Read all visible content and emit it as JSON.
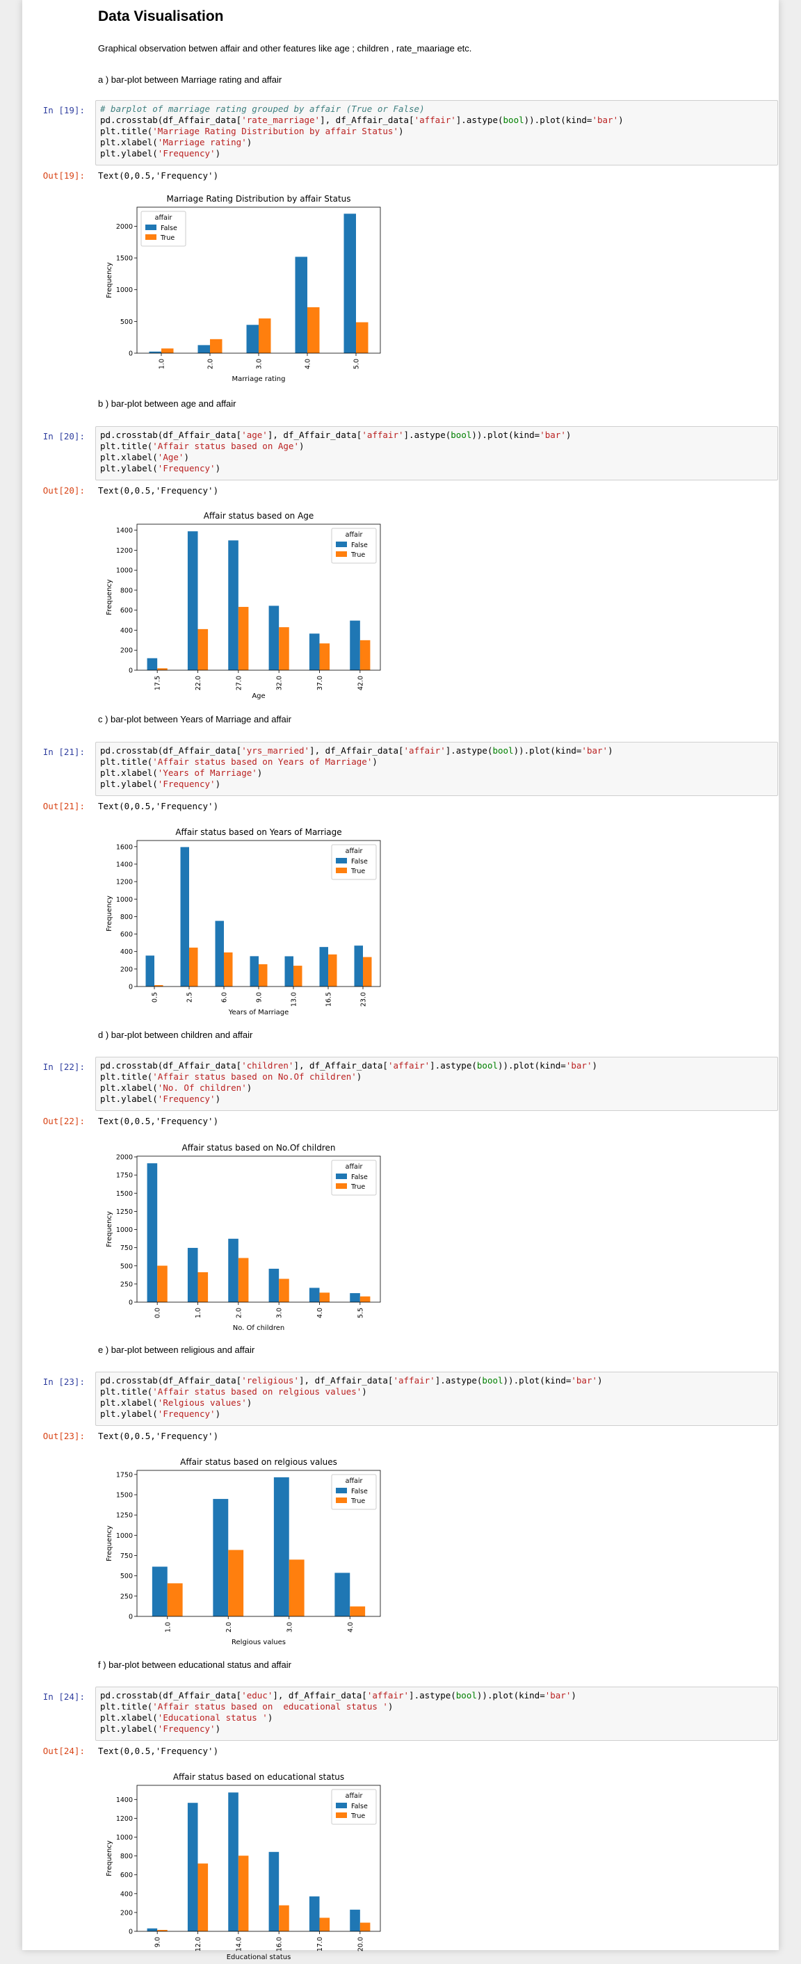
{
  "notebook": {
    "heading": "Data Visualisation",
    "intro": "Graphical observation betwen affair and other features like age ; children , rate_maariage etc."
  },
  "cells": [
    {
      "section": "a ) bar-plot between Marriage rating and affair",
      "in_prompt": "In [19]:",
      "out_prompt": "Out[19]:",
      "output_text": "Text(0,0.5,'Frequency')",
      "code_lines": [
        [
          {
            "t": "# barplot of marriage rating grouped by affair (True or False)",
            "c": "cm"
          }
        ],
        [
          {
            "t": "pd.crosstab(df_Affair_data["
          },
          {
            "t": "'rate_marriage'",
            "c": "st"
          },
          {
            "t": "], df_Affair_data["
          },
          {
            "t": "'affair'",
            "c": "st"
          },
          {
            "t": "].astype("
          },
          {
            "t": "bool",
            "c": "kw"
          },
          {
            "t": ")).plot(kind="
          },
          {
            "t": "'bar'",
            "c": "st"
          },
          {
            "t": ")"
          }
        ],
        [
          {
            "t": "plt.title("
          },
          {
            "t": "'Marriage Rating Distribution by affair Status'",
            "c": "st"
          },
          {
            "t": ")"
          }
        ],
        [
          {
            "t": "plt.xlabel("
          },
          {
            "t": "'Marriage rating'",
            "c": "st"
          },
          {
            "t": ")"
          }
        ],
        [
          {
            "t": "plt.ylabel("
          },
          {
            "t": "'Frequency'",
            "c": "st"
          },
          {
            "t": ")"
          }
        ]
      ]
    },
    {
      "section": "b ) bar-plot between age and affair",
      "in_prompt": "In [20]:",
      "out_prompt": "Out[20]:",
      "output_text": "Text(0,0.5,'Frequency')",
      "code_lines": [
        [
          {
            "t": "pd.crosstab(df_Affair_data["
          },
          {
            "t": "'age'",
            "c": "st"
          },
          {
            "t": "], df_Affair_data["
          },
          {
            "t": "'affair'",
            "c": "st"
          },
          {
            "t": "].astype("
          },
          {
            "t": "bool",
            "c": "kw"
          },
          {
            "t": ")).plot(kind="
          },
          {
            "t": "'bar'",
            "c": "st"
          },
          {
            "t": ")"
          }
        ],
        [
          {
            "t": "plt.title("
          },
          {
            "t": "'Affair status based on Age'",
            "c": "st"
          },
          {
            "t": ")"
          }
        ],
        [
          {
            "t": "plt.xlabel("
          },
          {
            "t": "'Age'",
            "c": "st"
          },
          {
            "t": ")"
          }
        ],
        [
          {
            "t": "plt.ylabel("
          },
          {
            "t": "'Frequency'",
            "c": "st"
          },
          {
            "t": ")"
          }
        ]
      ]
    },
    {
      "section": "c ) bar-plot between Years of Marriage and affair",
      "in_prompt": "In [21]:",
      "out_prompt": "Out[21]:",
      "output_text": "Text(0,0.5,'Frequency')",
      "code_lines": [
        [
          {
            "t": "pd.crosstab(df_Affair_data["
          },
          {
            "t": "'yrs_married'",
            "c": "st"
          },
          {
            "t": "], df_Affair_data["
          },
          {
            "t": "'affair'",
            "c": "st"
          },
          {
            "t": "].astype("
          },
          {
            "t": "bool",
            "c": "kw"
          },
          {
            "t": ")).plot(kind="
          },
          {
            "t": "'bar'",
            "c": "st"
          },
          {
            "t": ")"
          }
        ],
        [
          {
            "t": "plt.title("
          },
          {
            "t": "'Affair status based on Years of Marriage'",
            "c": "st"
          },
          {
            "t": ")"
          }
        ],
        [
          {
            "t": "plt.xlabel("
          },
          {
            "t": "'Years of Marriage'",
            "c": "st"
          },
          {
            "t": ")"
          }
        ],
        [
          {
            "t": "plt.ylabel("
          },
          {
            "t": "'Frequency'",
            "c": "st"
          },
          {
            "t": ")"
          }
        ]
      ]
    },
    {
      "section": "d ) bar-plot between children and affair",
      "in_prompt": "In [22]:",
      "out_prompt": "Out[22]:",
      "output_text": "Text(0,0.5,'Frequency')",
      "code_lines": [
        [
          {
            "t": "pd.crosstab(df_Affair_data["
          },
          {
            "t": "'children'",
            "c": "st"
          },
          {
            "t": "], df_Affair_data["
          },
          {
            "t": "'affair'",
            "c": "st"
          },
          {
            "t": "].astype("
          },
          {
            "t": "bool",
            "c": "kw"
          },
          {
            "t": ")).plot(kind="
          },
          {
            "t": "'bar'",
            "c": "st"
          },
          {
            "t": ")"
          }
        ],
        [
          {
            "t": "plt.title("
          },
          {
            "t": "'Affair status based on No.Of children'",
            "c": "st"
          },
          {
            "t": ")"
          }
        ],
        [
          {
            "t": "plt.xlabel("
          },
          {
            "t": "'No. Of children'",
            "c": "st"
          },
          {
            "t": ")"
          }
        ],
        [
          {
            "t": "plt.ylabel("
          },
          {
            "t": "'Frequency'",
            "c": "st"
          },
          {
            "t": ")"
          }
        ]
      ]
    },
    {
      "section": "e ) bar-plot between religious and affair",
      "in_prompt": "In [23]:",
      "out_prompt": "Out[23]:",
      "output_text": "Text(0,0.5,'Frequency')",
      "code_lines": [
        [
          {
            "t": "pd.crosstab(df_Affair_data["
          },
          {
            "t": "'religious'",
            "c": "st"
          },
          {
            "t": "], df_Affair_data["
          },
          {
            "t": "'affair'",
            "c": "st"
          },
          {
            "t": "].astype("
          },
          {
            "t": "bool",
            "c": "kw"
          },
          {
            "t": ")).plot(kind="
          },
          {
            "t": "'bar'",
            "c": "st"
          },
          {
            "t": ")"
          }
        ],
        [
          {
            "t": "plt.title("
          },
          {
            "t": "'Affair status based on relgious values'",
            "c": "st"
          },
          {
            "t": ")"
          }
        ],
        [
          {
            "t": "plt.xlabel("
          },
          {
            "t": "'Relgious values'",
            "c": "st"
          },
          {
            "t": ")"
          }
        ],
        [
          {
            "t": "plt.ylabel("
          },
          {
            "t": "'Frequency'",
            "c": "st"
          },
          {
            "t": ")"
          }
        ]
      ]
    },
    {
      "section": "f ) bar-plot between educational status and affair",
      "in_prompt": "In [24]:",
      "out_prompt": "Out[24]:",
      "output_text": "Text(0,0.5,'Frequency')",
      "code_lines": [
        [
          {
            "t": "pd.crosstab(df_Affair_data["
          },
          {
            "t": "'educ'",
            "c": "st"
          },
          {
            "t": "], df_Affair_data["
          },
          {
            "t": "'affair'",
            "c": "st"
          },
          {
            "t": "].astype("
          },
          {
            "t": "bool",
            "c": "kw"
          },
          {
            "t": ")).plot(kind="
          },
          {
            "t": "'bar'",
            "c": "st"
          },
          {
            "t": ")"
          }
        ],
        [
          {
            "t": "plt.title("
          },
          {
            "t": "'Affair status based on  educational status '",
            "c": "st"
          },
          {
            "t": ")"
          }
        ],
        [
          {
            "t": "plt.xlabel("
          },
          {
            "t": "'Educational status '",
            "c": "st"
          },
          {
            "t": ")"
          }
        ],
        [
          {
            "t": "plt.ylabel("
          },
          {
            "t": "'Frequency'",
            "c": "st"
          },
          {
            "t": ")"
          }
        ]
      ]
    }
  ],
  "colors": {
    "false_series": "#1f77b4",
    "true_series": "#ff7f0e",
    "in_prompt": "#303F9F",
    "out_prompt": "#D84315"
  },
  "chart_data": [
    {
      "type": "bar",
      "title": "Marriage Rating Distribution by affair Status",
      "xlabel": "Marriage rating",
      "ylabel": "Frequency",
      "categories": [
        "1.0",
        "2.0",
        "3.0",
        "4.0",
        "5.0"
      ],
      "series": [
        {
          "name": "False",
          "values": [
            25,
            127,
            446,
            1518,
            2197
          ]
        },
        {
          "name": "True",
          "values": [
            74,
            221,
            547,
            724,
            487
          ]
        }
      ],
      "ylim": [
        0,
        2300
      ],
      "yticks": [
        0,
        500,
        1000,
        1500,
        2000
      ],
      "legend": {
        "title": "affair",
        "position": "top-left"
      },
      "grid": false
    },
    {
      "type": "bar",
      "title": "Affair status based on Age",
      "xlabel": "Age",
      "ylabel": "Frequency",
      "categories": [
        "17.5",
        "22.0",
        "27.0",
        "32.0",
        "37.0",
        "42.0"
      ],
      "series": [
        {
          "name": "False",
          "values": [
            120,
            1389,
            1298,
            644,
            366,
            496
          ]
        },
        {
          "name": "True",
          "values": [
            19,
            411,
            633,
            430,
            268,
            300
          ]
        }
      ],
      "ylim": [
        0,
        1460
      ],
      "yticks": [
        0,
        200,
        400,
        600,
        800,
        1000,
        1200,
        1400
      ],
      "legend": {
        "title": "affair",
        "position": "top-right"
      },
      "grid": false
    },
    {
      "type": "bar",
      "title": "Affair status based on Years of Marriage",
      "xlabel": "Years of Marriage",
      "ylabel": "Frequency",
      "categories": [
        "0.5",
        "2.5",
        "6.0",
        "9.0",
        "13.0",
        "16.5",
        "23.0"
      ],
      "series": [
        {
          "name": "False",
          "values": [
            354,
            1595,
            751,
            347,
            346,
            452,
            468
          ]
        },
        {
          "name": "True",
          "values": [
            16,
            445,
            390,
            255,
            238,
            367,
            337
          ]
        }
      ],
      "ylim": [
        0,
        1670
      ],
      "yticks": [
        0,
        200,
        400,
        600,
        800,
        1000,
        1200,
        1400,
        1600
      ],
      "legend": {
        "title": "affair",
        "position": "top-right"
      },
      "grid": false
    },
    {
      "type": "bar",
      "title": "Affair status based on No.Of children",
      "xlabel": "No. Of children",
      "ylabel": "Frequency",
      "categories": [
        "0.0",
        "1.0",
        "2.0",
        "3.0",
        "4.0",
        "5.5"
      ],
      "series": [
        {
          "name": "False",
          "values": [
            1912,
            747,
            873,
            460,
            197,
            124
          ]
        },
        {
          "name": "True",
          "values": [
            502,
            412,
            608,
            321,
            131,
            79
          ]
        }
      ],
      "ylim": [
        0,
        2010
      ],
      "yticks": [
        0,
        250,
        500,
        750,
        1000,
        1250,
        1500,
        1750,
        2000
      ],
      "legend": {
        "title": "affair",
        "position": "top-right"
      },
      "grid": false
    },
    {
      "type": "bar",
      "title": "Affair status based on relgious values",
      "xlabel": "Relgious values",
      "ylabel": "Frequency",
      "categories": [
        "1.0",
        "2.0",
        "3.0",
        "4.0"
      ],
      "series": [
        {
          "name": "False",
          "values": [
            613,
            1448,
            1715,
            537
          ]
        },
        {
          "name": "True",
          "values": [
            408,
            819,
            700,
            123
          ]
        }
      ],
      "ylim": [
        0,
        1800
      ],
      "yticks": [
        0,
        250,
        500,
        750,
        1000,
        1250,
        1500,
        1750
      ],
      "legend": {
        "title": "affair",
        "position": "top-right"
      },
      "grid": false
    },
    {
      "type": "bar",
      "title": "Affair status based on  educational status",
      "xlabel": "Educational status",
      "ylabel": "Frequency",
      "categories": [
        "9.0",
        "12.0",
        "14.0",
        "16.0",
        "17.0",
        "20.0"
      ],
      "series": [
        {
          "name": "False",
          "values": [
            31,
            1364,
            1474,
            843,
            371,
            230
          ]
        },
        {
          "name": "True",
          "values": [
            15,
            720,
            803,
            276,
            144,
            92
          ]
        }
      ],
      "ylim": [
        0,
        1550
      ],
      "yticks": [
        0,
        200,
        400,
        600,
        800,
        1000,
        1200,
        1400
      ],
      "legend": {
        "title": "affair",
        "position": "top-right"
      },
      "grid": false
    }
  ]
}
